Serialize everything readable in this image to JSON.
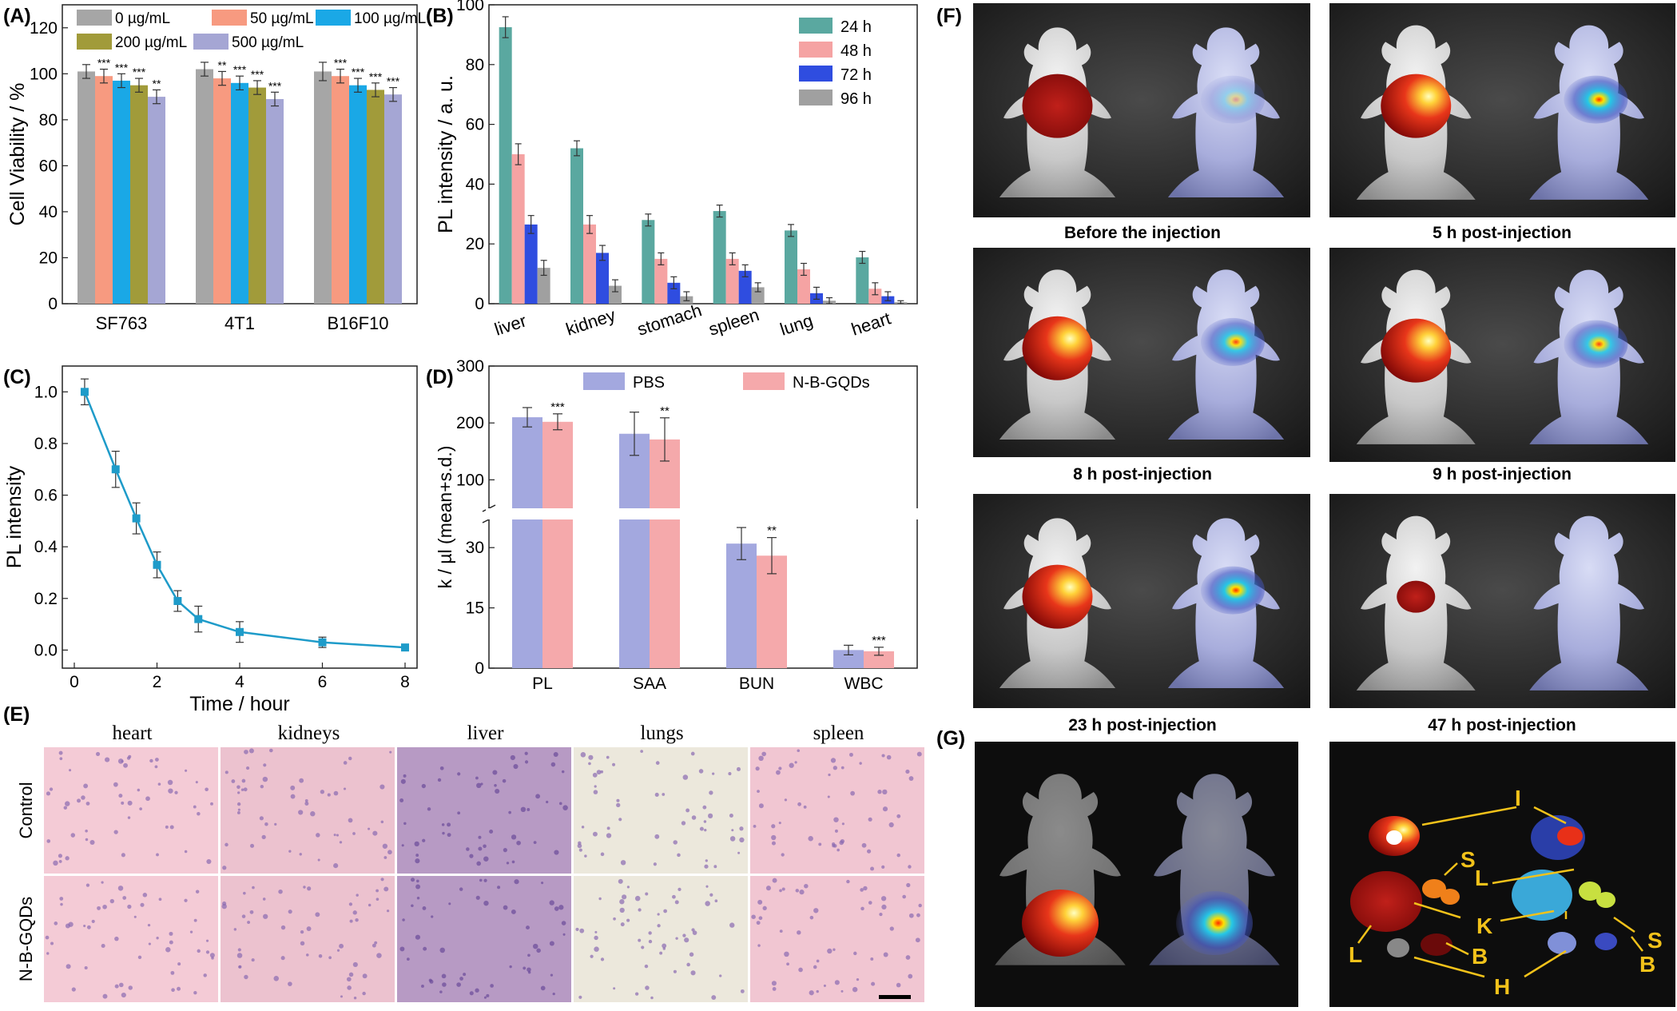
{
  "panel_letters": {
    "A": "(A)",
    "B": "(B)",
    "C": "(C)",
    "D": "(D)",
    "E": "(E)",
    "F": "(F)",
    "G": "(G)"
  },
  "colors": {
    "c0": "#a6a6a6",
    "c50": "#f79a80",
    "c100": "#1aa8e6",
    "c200": "#a19b3a",
    "c500": "#a5a6d4",
    "c24": "#5aa8a0",
    "c48": "#f5a3a3",
    "c72": "#2f4de0",
    "c96": "#a0a0a0",
    "line": "#1e9bc9",
    "pbs": "#a3a8df",
    "ngqd": "#f5a9ab"
  },
  "chart_data": [
    {
      "id": "A",
      "type": "bar",
      "ylabel": "Cell Viability / %",
      "ylim": [
        0,
        130
      ],
      "yticks": [
        "0",
        "20",
        "40",
        "60",
        "80",
        "100",
        "120"
      ],
      "categories": [
        "SF763",
        "4T1",
        "B16F10"
      ],
      "series": [
        {
          "name": "0 µg/mL",
          "values": [
            101,
            102,
            101
          ],
          "err": [
            3,
            3,
            4
          ],
          "sig": [
            "",
            "",
            ""
          ]
        },
        {
          "name": "50 µg/mL",
          "values": [
            99,
            98,
            99
          ],
          "err": [
            3,
            3,
            3
          ],
          "sig": [
            "***",
            "**",
            "***"
          ]
        },
        {
          "name": "100 µg/mL",
          "values": [
            97,
            96,
            95
          ],
          "err": [
            3,
            3,
            3
          ],
          "sig": [
            "***",
            "***",
            "***"
          ]
        },
        {
          "name": "200 µg/mL",
          "values": [
            95,
            94,
            93
          ],
          "err": [
            3,
            3,
            3
          ],
          "sig": [
            "***",
            "***",
            "***"
          ]
        },
        {
          "name": "500 µg/mL",
          "values": [
            90,
            89,
            91
          ],
          "err": [
            3,
            3,
            3
          ],
          "sig": [
            "**",
            "***",
            "***"
          ]
        }
      ]
    },
    {
      "id": "B",
      "type": "bar",
      "ylabel": "PL intensity / a. u.",
      "ylim": [
        0,
        100
      ],
      "yticks": [
        "0",
        "20",
        "40",
        "60",
        "80",
        "100"
      ],
      "categories": [
        "liver",
        "kidney",
        "stomach",
        "spleen",
        "lung",
        "heart"
      ],
      "series": [
        {
          "name": "24 h",
          "values": [
            92.5,
            52,
            28,
            31,
            24.5,
            15.5
          ],
          "err": [
            3.5,
            2.5,
            2,
            2,
            2,
            2
          ]
        },
        {
          "name": "48 h",
          "values": [
            50,
            26.5,
            15,
            15,
            11.5,
            5
          ],
          "err": [
            3.5,
            3,
            2,
            2,
            2,
            2
          ]
        },
        {
          "name": "72 h",
          "values": [
            26.5,
            17,
            7,
            11,
            3.5,
            2.5
          ],
          "err": [
            3,
            2.5,
            2,
            2,
            2,
            1.5
          ]
        },
        {
          "name": "96 h",
          "values": [
            12,
            6,
            2.5,
            5.5,
            1,
            0.5
          ],
          "err": [
            2.5,
            2,
            1.5,
            1.5,
            1,
            0.5
          ]
        }
      ]
    },
    {
      "id": "C",
      "type": "line",
      "xlabel": "Time / hour",
      "ylabel": "PL intensity",
      "xlim": [
        0,
        8
      ],
      "ylim": [
        -0.07,
        1.1
      ],
      "xticks": [
        "0",
        "2",
        "4",
        "6",
        "8"
      ],
      "yticks": [
        "0.0",
        "0.2",
        "0.4",
        "0.6",
        "0.8",
        "1.0"
      ],
      "x": [
        0.25,
        1,
        1.5,
        2,
        2.5,
        3,
        4,
        6,
        8
      ],
      "y": [
        1.0,
        0.7,
        0.51,
        0.33,
        0.19,
        0.12,
        0.07,
        0.03,
        0.01
      ],
      "err": [
        0.05,
        0.07,
        0.06,
        0.05,
        0.04,
        0.05,
        0.04,
        0.02,
        0.01
      ]
    },
    {
      "id": "D",
      "type": "bar",
      "ylabel": "k / µl (mean+s.d.)",
      "yticks_upper": [
        "100",
        "200",
        "300"
      ],
      "yticks_lower": [
        "0",
        "15",
        "30"
      ],
      "categories": [
        "PL",
        "SAA",
        "BUN",
        "WBC"
      ],
      "series": [
        {
          "name": "PBS",
          "values": [
            210,
            181,
            31,
            4.5
          ],
          "err": [
            17,
            38,
            4,
            1.2
          ],
          "sig": [
            "",
            "",
            "",
            ""
          ]
        },
        {
          "name": "N-B-GQDs",
          "values": [
            202,
            171,
            28,
            4.2
          ],
          "err": [
            14,
            38,
            4.5,
            1
          ],
          "sig": [
            "***",
            "**",
            "**",
            "***"
          ]
        }
      ]
    }
  ],
  "histology": {
    "columns": [
      "heart",
      "kidneys",
      "liver",
      "lungs",
      "spleen"
    ],
    "rows": [
      "Control",
      "N-B-GQDs"
    ]
  },
  "imaging_captions": [
    "Before the injection",
    "5 h post-injection",
    "8 h post-injection",
    "9 h post-injection",
    "23 h post-injection",
    "47 h post-injection"
  ],
  "organ_labels": {
    "I": "I",
    "S": "S",
    "L": "L",
    "K": "K",
    "B": "B",
    "H": "H"
  }
}
